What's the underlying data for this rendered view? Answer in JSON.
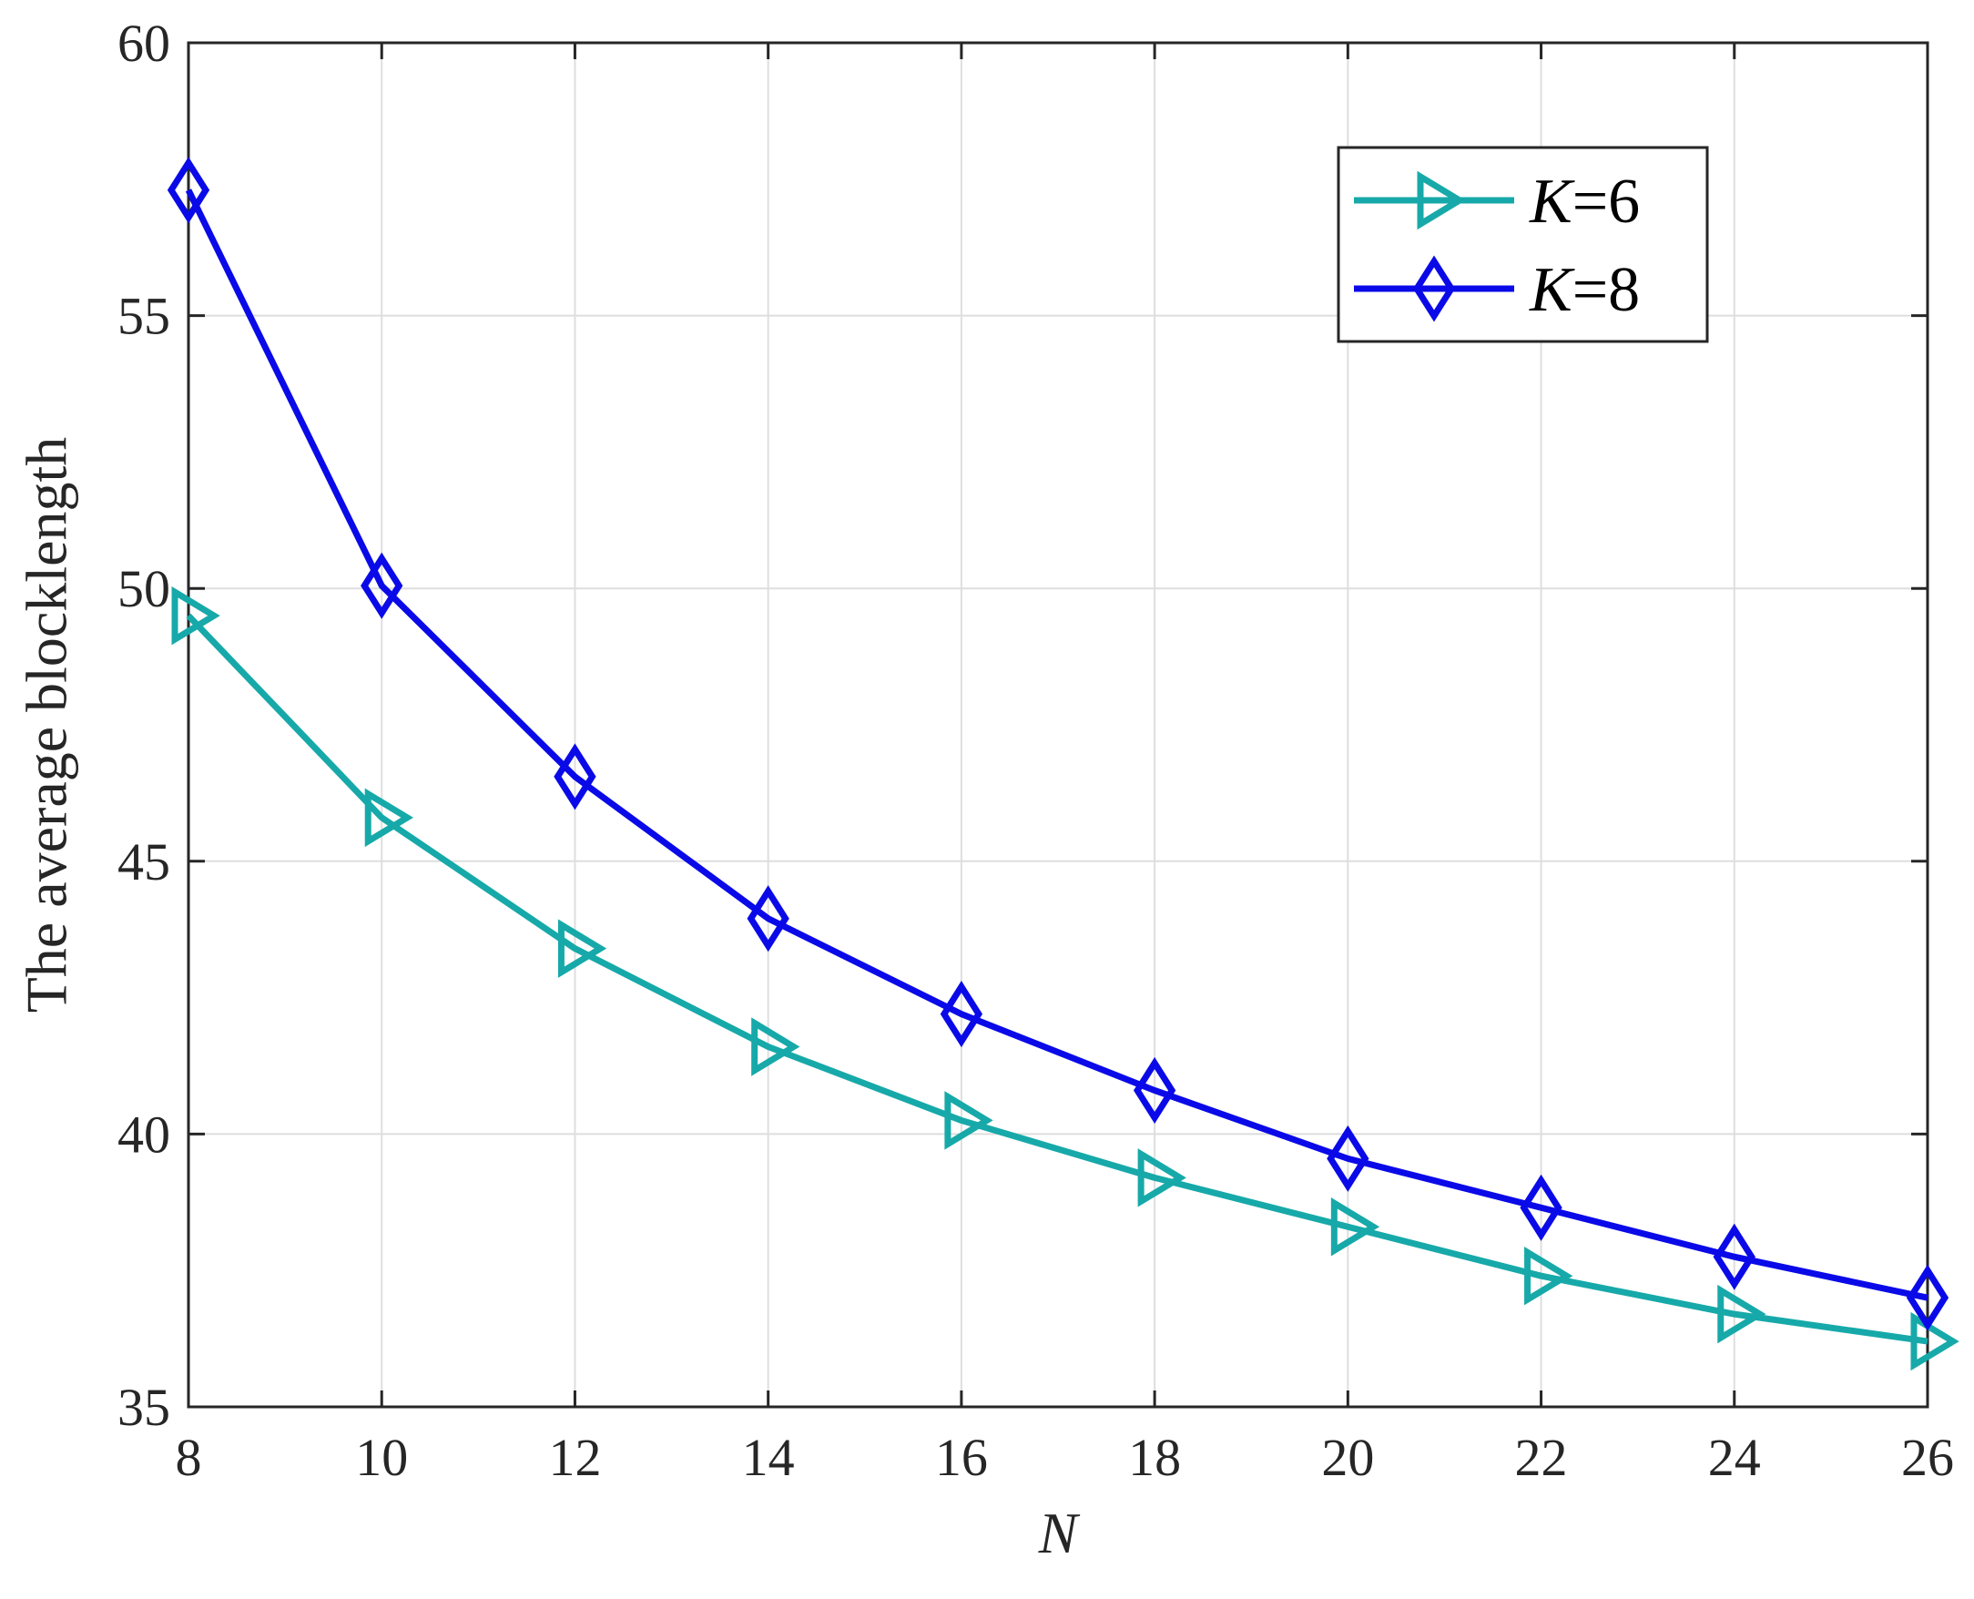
{
  "chart_data": {
    "type": "line",
    "xlabel": "N",
    "ylabel": "The average blocklength",
    "xlim": [
      8,
      26
    ],
    "ylim": [
      35,
      60
    ],
    "x": [
      8,
      10,
      12,
      14,
      16,
      18,
      20,
      22,
      24,
      26
    ],
    "xticks": [
      "8",
      "10",
      "12",
      "14",
      "16",
      "18",
      "20",
      "22",
      "24",
      "26"
    ],
    "yticks": [
      "35",
      "40",
      "45",
      "50",
      "55",
      "60"
    ],
    "grid": true,
    "legend_position": "top-right",
    "series": [
      {
        "name": "K=6",
        "legend_var": "K",
        "legend_value": "=6",
        "color": "#17a9a9",
        "marker": "triangle-right",
        "values": [
          49.5,
          45.8,
          43.4,
          41.6,
          40.25,
          39.2,
          38.3,
          37.4,
          36.7,
          36.2
        ]
      },
      {
        "name": "K=8",
        "legend_var": "K",
        "legend_value": "=8",
        "color": "#0a0ae8",
        "marker": "diamond",
        "values": [
          57.3,
          50.05,
          46.55,
          43.95,
          42.2,
          40.8,
          39.55,
          38.65,
          37.75,
          37.0
        ]
      }
    ]
  }
}
